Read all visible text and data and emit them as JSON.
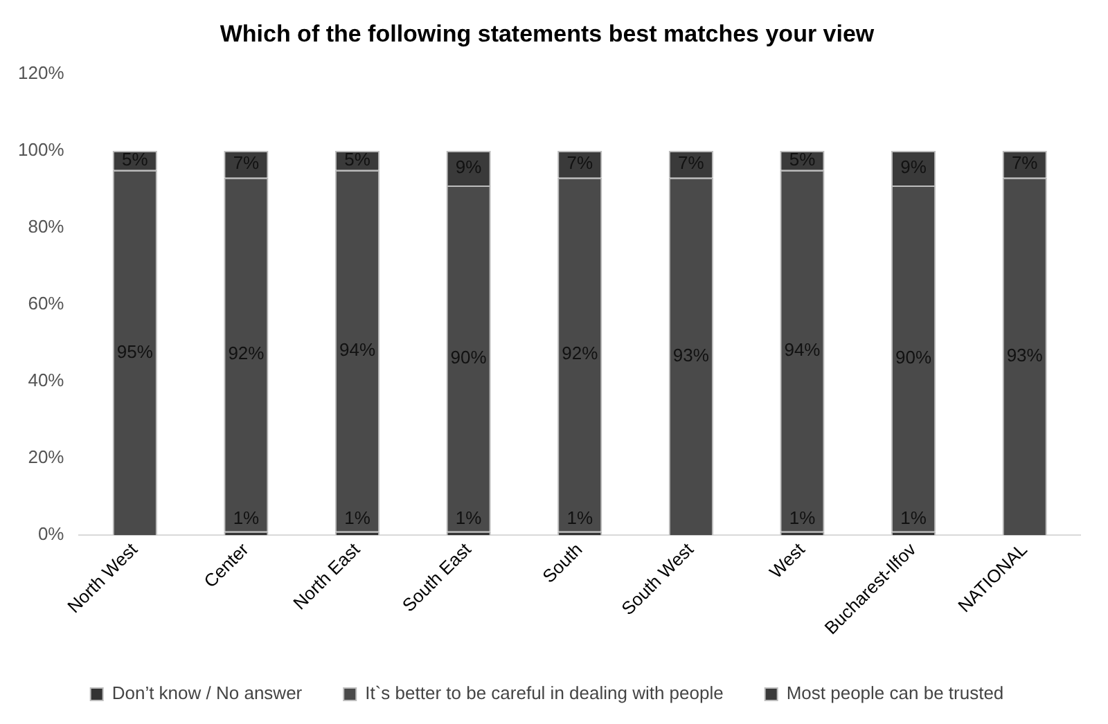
{
  "chart_data": {
    "type": "bar",
    "title": "Which of the following statements best matches your view",
    "categories": [
      "North West",
      "Center",
      "North East",
      "South East",
      "South",
      "South West",
      "West",
      "Bucharest-Ilfov",
      "NATIONAL"
    ],
    "stacked": true,
    "ylim": [
      0,
      120
    ],
    "yticks": [
      {
        "value": 0,
        "label": "0%"
      },
      {
        "value": 20,
        "label": "20%"
      },
      {
        "value": 40,
        "label": "40%"
      },
      {
        "value": 60,
        "label": "60%"
      },
      {
        "value": 80,
        "label": "80%"
      },
      {
        "value": 100,
        "label": "100%"
      },
      {
        "value": 120,
        "label": "120%"
      }
    ],
    "grid": false,
    "legend": "bottom",
    "series": [
      {
        "name": "Don’t know / No answer",
        "color": "#333333",
        "values": [
          0,
          1,
          1,
          1,
          1,
          0,
          1,
          1,
          0
        ],
        "value_labels": [
          null,
          "1%",
          "1%",
          "1%",
          "1%",
          null,
          "1%",
          "1%",
          null
        ]
      },
      {
        "name": "It`s better to be careful in dealing with people",
        "color": "#4a4a4a",
        "values": [
          95,
          92,
          94,
          90,
          92,
          93,
          94,
          90,
          93
        ],
        "value_labels": [
          "95%",
          "92%",
          "94%",
          "90%",
          "92%",
          "93%",
          "94%",
          "90%",
          "93%"
        ]
      },
      {
        "name": "Most people can be trusted",
        "color": "#3a3a3a",
        "values": [
          5,
          7,
          5,
          9,
          7,
          7,
          5,
          9,
          7
        ],
        "value_labels": [
          "5%",
          "7%",
          "5%",
          "9%",
          "7%",
          "7%",
          "5%",
          "9%",
          "7%"
        ]
      }
    ]
  }
}
